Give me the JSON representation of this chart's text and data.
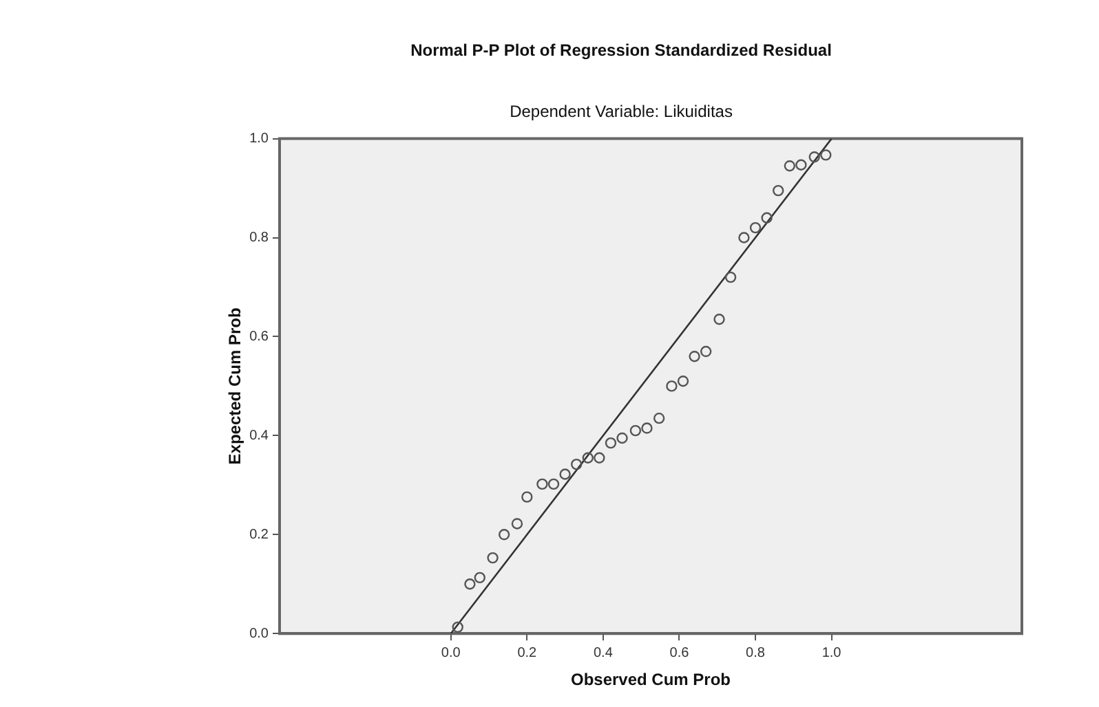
{
  "chart_data": {
    "type": "scatter",
    "title": "Normal P-P Plot of Regression Standardized Residual",
    "subtitle": "Dependent Variable: Likuiditas",
    "xlabel": "Observed Cum Prob",
    "ylabel": "Expected Cum Prob",
    "xlim": [
      -0.45,
      1.5
    ],
    "ylim": [
      0,
      1
    ],
    "xticks": [
      {
        "value": 0,
        "label": "0.0"
      },
      {
        "value": 0.2,
        "label": "0.2"
      },
      {
        "value": 0.4,
        "label": "0.4"
      },
      {
        "value": 0.6,
        "label": "0.6"
      },
      {
        "value": 0.8,
        "label": "0.8"
      },
      {
        "value": 1,
        "label": "1.0"
      }
    ],
    "yticks": [
      {
        "value": 0,
        "label": "0.0"
      },
      {
        "value": 0.2,
        "label": "0.2"
      },
      {
        "value": 0.4,
        "label": "0.4"
      },
      {
        "value": 0.6,
        "label": "0.6"
      },
      {
        "value": 0.8,
        "label": "0.8"
      },
      {
        "value": 1,
        "label": "1.0"
      }
    ],
    "grid": false,
    "legend": false,
    "series": [
      {
        "marker": "circle",
        "color": "#555555",
        "x": [
          0.018,
          0.05,
          0.076,
          0.11,
          0.14,
          0.174,
          0.2,
          0.24,
          0.27,
          0.3,
          0.33,
          0.36,
          0.39,
          0.42,
          0.45,
          0.485,
          0.515,
          0.547,
          0.58,
          0.61,
          0.64,
          0.67,
          0.705,
          0.735,
          0.77,
          0.8,
          0.83,
          0.86,
          0.89,
          0.92,
          0.955,
          0.985
        ],
        "values": [
          0.013,
          0.1,
          0.113,
          0.153,
          0.2,
          0.222,
          0.276,
          0.302,
          0.302,
          0.322,
          0.342,
          0.355,
          0.355,
          0.385,
          0.395,
          0.41,
          0.415,
          0.435,
          0.5,
          0.51,
          0.56,
          0.57,
          0.635,
          0.72,
          0.8,
          0.82,
          0.84,
          0.895,
          0.945,
          0.947,
          0.963,
          0.967
        ]
      },
      {
        "type": "line",
        "marker": "none",
        "line_style": "solid",
        "color": "#333333",
        "x": [
          0,
          1
        ],
        "values": [
          0,
          1
        ]
      }
    ]
  }
}
